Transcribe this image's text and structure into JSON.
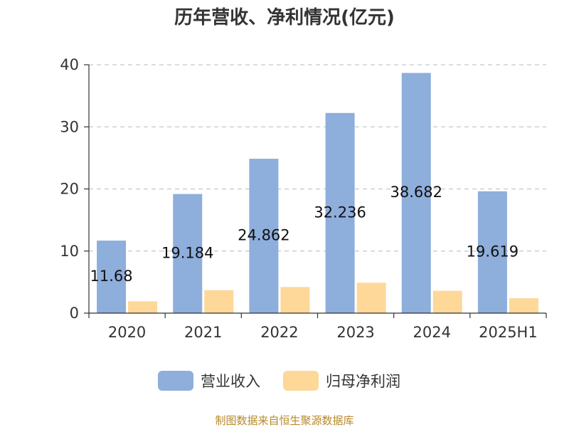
{
  "chart_data": {
    "type": "bar",
    "title": "历年营收、净利情况(亿元)",
    "categories": [
      "2020",
      "2021",
      "2022",
      "2023",
      "2024",
      "2025H1"
    ],
    "series": [
      {
        "name": "营业收入",
        "color": "#8eaedc",
        "values": [
          11.68,
          19.184,
          24.862,
          32.236,
          38.682,
          19.619
        ],
        "labels": [
          "11.68",
          "19.184",
          "24.862",
          "32.236",
          "38.682",
          "19.619"
        ]
      },
      {
        "name": "归母净利润",
        "color": "#fdd899",
        "values": [
          1.9,
          3.7,
          4.2,
          4.9,
          3.6,
          2.4
        ]
      }
    ],
    "yticks": [
      "0",
      "10",
      "20",
      "30",
      "40"
    ],
    "ylim": [
      0,
      40
    ],
    "grid": true,
    "legend_position": "bottom"
  },
  "source_text": "制图数据来自恒生聚源数据库"
}
